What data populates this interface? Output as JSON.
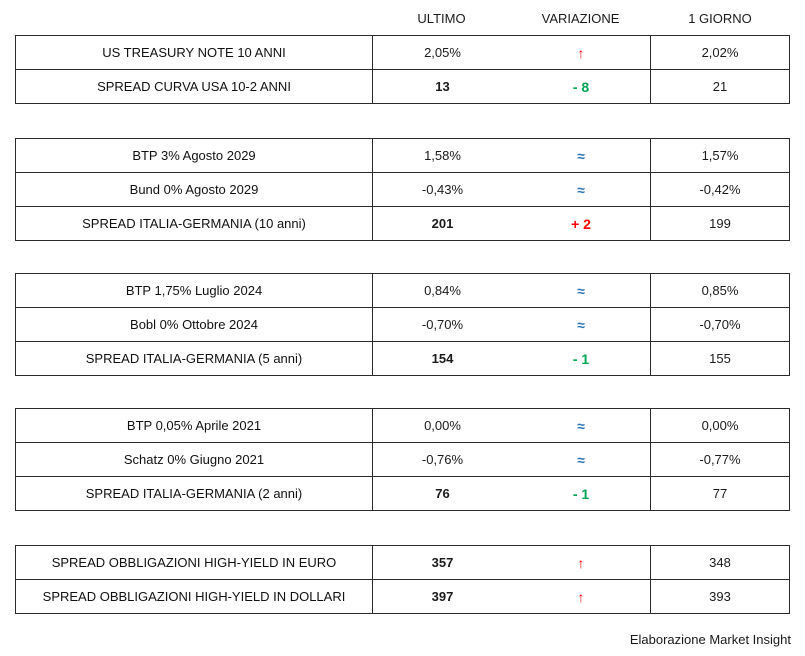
{
  "chart_data": {
    "type": "table",
    "columns": [
      "ULTIMO",
      "VARIAZIONE",
      "1 GIORNO"
    ],
    "groups": [
      {
        "name": "us-treasury",
        "rows": [
          {
            "label": "US TREASURY NOTE 10 ANNI",
            "ultimo": "2,05%",
            "var": "↑",
            "var_color": "red",
            "giorno": "2,02%"
          },
          {
            "label": "SPREAD CURVA USA 10-2 ANNI",
            "ultimo": "13",
            "var": "- 8",
            "var_color": "green",
            "giorno": "21"
          }
        ]
      },
      {
        "name": "italy-germany-10y",
        "rows": [
          {
            "label": "BTP 3% Agosto 2029",
            "ultimo": "1,58%",
            "var": "≈",
            "var_color": "blue",
            "giorno": "1,57%"
          },
          {
            "label": "Bund 0% Agosto 2029",
            "ultimo": "-0,43%",
            "var": "≈",
            "var_color": "blue",
            "giorno": "-0,42%"
          },
          {
            "label": "SPREAD ITALIA-GERMANIA (10 anni)",
            "ultimo": "201",
            "var": "+ 2",
            "var_color": "red",
            "giorno": "199"
          }
        ]
      },
      {
        "name": "italy-germany-5y",
        "rows": [
          {
            "label": "BTP 1,75% Luglio 2024",
            "ultimo": "0,84%",
            "var": "≈",
            "var_color": "blue",
            "giorno": "0,85%"
          },
          {
            "label": "Bobl 0% Ottobre 2024",
            "ultimo": "-0,70%",
            "var": "≈",
            "var_color": "blue",
            "giorno": "-0,70%"
          },
          {
            "label": "SPREAD ITALIA-GERMANIA (5 anni)",
            "ultimo": "154",
            "var": "- 1",
            "var_color": "green",
            "giorno": "155"
          }
        ]
      },
      {
        "name": "italy-germany-2y",
        "rows": [
          {
            "label": "BTP 0,05% Aprile 2021",
            "ultimo": "0,00%",
            "var": "≈",
            "var_color": "blue",
            "giorno": "0,00%"
          },
          {
            "label": "Schatz 0% Giugno 2021",
            "ultimo": "-0,76%",
            "var": "≈",
            "var_color": "blue",
            "giorno": "-0,77%"
          },
          {
            "label": "SPREAD ITALIA-GERMANIA (2 anni)",
            "ultimo": "76",
            "var": "- 1",
            "var_color": "green",
            "giorno": "77"
          }
        ]
      },
      {
        "name": "high-yield",
        "rows": [
          {
            "label": "SPREAD OBBLIGAZIONI HIGH-YIELD IN EURO",
            "ultimo": "357",
            "var": "↑",
            "var_color": "red",
            "giorno": "348"
          },
          {
            "label": "SPREAD OBBLIGAZIONI HIGH-YIELD IN DOLLARI",
            "ultimo": "397",
            "var": "↑",
            "var_color": "red",
            "giorno": "393"
          }
        ]
      }
    ],
    "footer": "Elaborazione Market Insight"
  },
  "colors": {
    "up_arrow_red": "#ff0000",
    "variation_green": "#00a651",
    "flat_blue": "#2e75b6",
    "border": "#2b2b2b",
    "text": "#1a1a1a"
  }
}
